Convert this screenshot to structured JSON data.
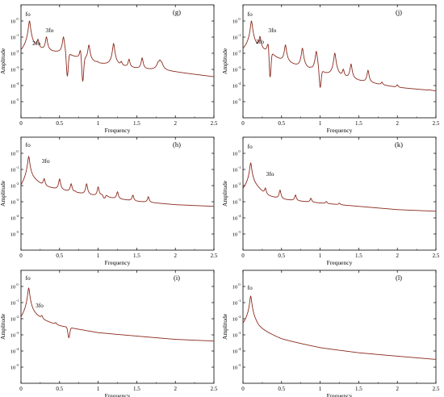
{
  "figure": {
    "panel_ids": [
      "g",
      "j",
      "h",
      "k",
      "i",
      "l"
    ]
  },
  "chart_data": [
    {
      "id": "g",
      "type": "line",
      "panel_label": "(g)",
      "xlabel": "Frequency",
      "ylabel": "Amplitude",
      "xlim": [
        0,
        2.5
      ],
      "ylim_log10": [
        -6,
        1
      ],
      "y_scale": "log",
      "x_ticks": [
        "0",
        "0.5",
        "1",
        "1.5",
        "2",
        "2.5"
      ],
      "y_ticks": [
        {
          "base": "10",
          "exp": "0"
        },
        {
          "base": "10",
          "exp": "-1"
        },
        {
          "base": "10",
          "exp": "-2"
        },
        {
          "base": "10",
          "exp": "-3"
        },
        {
          "base": "10",
          "exp": "-4"
        },
        {
          "base": "10",
          "exp": "-5"
        }
      ],
      "annotations": [
        {
          "text": "fo",
          "x": 0.09,
          "log10y": 0.3
        },
        {
          "text": "3fo",
          "x": 0.37,
          "log10y": -0.7
        },
        {
          "text": "2fo",
          "x": 0.2,
          "log10y": -1.5
        }
      ],
      "series": [
        {
          "color": "#8b2a1e",
          "baseline": [
            [
              0,
              -2.2
            ],
            [
              0.1,
              -1.8
            ],
            [
              0.5,
              -2.0
            ],
            [
              1.0,
              -2.7
            ],
            [
              1.5,
              -3.0
            ],
            [
              2.0,
              -3.2
            ],
            [
              2.5,
              -3.5
            ]
          ],
          "peaks": [
            [
              0.11,
              0.0
            ],
            [
              0.22,
              -1.2
            ],
            [
              0.33,
              -1.0
            ],
            [
              0.55,
              -1.0
            ],
            [
              0.66,
              -3.0
            ],
            [
              0.77,
              -1.8
            ],
            [
              0.88,
              -1.5
            ],
            [
              0.99,
              -2.6
            ],
            [
              1.2,
              -1.4
            ],
            [
              1.3,
              -2.6
            ],
            [
              1.4,
              -2.4
            ],
            [
              1.57,
              -2.3
            ],
            [
              1.8,
              -1.8
            ]
          ],
          "dips": [
            [
              0.6,
              -3.8
            ],
            [
              0.8,
              -4.1
            ],
            [
              1.8,
              -3.8
            ]
          ]
        }
      ]
    },
    {
      "id": "j",
      "type": "line",
      "panel_label": "(j)",
      "xlabel": "Frequency",
      "ylabel": "Amplitude",
      "xlim": [
        0,
        2.5
      ],
      "ylim_log10": [
        -6,
        1
      ],
      "y_scale": "log",
      "x_ticks": [
        "0",
        "0.5",
        "1",
        "1.5",
        "2",
        "2.5"
      ],
      "y_ticks": [
        {
          "base": "10",
          "exp": "0"
        },
        {
          "base": "10",
          "exp": "-1"
        },
        {
          "base": "10",
          "exp": "-2"
        },
        {
          "base": "10",
          "exp": "-3"
        },
        {
          "base": "10",
          "exp": "-4"
        },
        {
          "base": "10",
          "exp": "-5"
        }
      ],
      "annotations": [
        {
          "text": "fo",
          "x": 0.09,
          "log10y": 0.3
        },
        {
          "text": "3fo",
          "x": 0.38,
          "log10y": -0.7
        },
        {
          "text": "2fo",
          "x": 0.22,
          "log10y": -1.4
        }
      ],
      "series": [
        {
          "color": "#8b2a1e",
          "baseline": [
            [
              0,
              -2.0
            ],
            [
              0.1,
              -1.6
            ],
            [
              0.35,
              -2.2
            ],
            [
              0.5,
              -2.6
            ],
            [
              1.0,
              -3.5
            ],
            [
              1.5,
              -4.0
            ],
            [
              2.0,
              -4.5
            ],
            [
              2.5,
              -4.7
            ]
          ],
          "peaks": [
            [
              0.11,
              0.0
            ],
            [
              0.22,
              -1.0
            ],
            [
              0.33,
              -1.2
            ],
            [
              0.55,
              -1.5
            ],
            [
              0.77,
              -1.7
            ],
            [
              0.88,
              -3.2
            ],
            [
              0.95,
              -1.9
            ],
            [
              1.19,
              -2.0
            ],
            [
              1.3,
              -3.1
            ],
            [
              1.4,
              -2.7
            ],
            [
              1.62,
              -3.1
            ],
            [
              1.8,
              -4.0
            ],
            [
              2.0,
              -4.2
            ],
            [
              2.42,
              -4.6
            ]
          ],
          "dips": [
            [
              0.35,
              -4.2
            ],
            [
              1.0,
              -4.8
            ]
          ]
        }
      ]
    },
    {
      "id": "h",
      "type": "line",
      "panel_label": "(h)",
      "xlabel": "Frequency",
      "ylabel": "Amplitude",
      "xlim": [
        0,
        2.5
      ],
      "ylim_log10": [
        -6,
        1
      ],
      "y_scale": "log",
      "x_ticks": [
        "0",
        "0.5",
        "1",
        "1.5",
        "2",
        "2.5"
      ],
      "y_ticks": [
        {
          "base": "10",
          "exp": "0"
        },
        {
          "base": "10",
          "exp": "-1"
        },
        {
          "base": "10",
          "exp": "-2"
        },
        {
          "base": "10",
          "exp": "-3"
        },
        {
          "base": "10",
          "exp": "-4"
        },
        {
          "base": "10",
          "exp": "-5"
        }
      ],
      "annotations": [
        {
          "text": "fo",
          "x": 0.09,
          "log10y": 0.4
        },
        {
          "text": "3fo",
          "x": 0.32,
          "log10y": -0.6
        }
      ],
      "series": [
        {
          "color": "#8b2a1e",
          "baseline": [
            [
              0,
              -2.4
            ],
            [
              0.1,
              -1.5
            ],
            [
              0.3,
              -2.1
            ],
            [
              0.5,
              -2.3
            ],
            [
              1.0,
              -2.7
            ],
            [
              1.5,
              -3.0
            ],
            [
              2.0,
              -3.2
            ],
            [
              2.5,
              -3.3
            ]
          ],
          "peaks": [
            [
              0.1,
              -0.2
            ],
            [
              0.3,
              -1.6
            ],
            [
              0.5,
              -1.6
            ],
            [
              0.65,
              -1.9
            ],
            [
              0.7,
              -2.4
            ],
            [
              0.85,
              -1.9
            ],
            [
              1.0,
              -2.1
            ],
            [
              1.08,
              -2.1
            ],
            [
              1.25,
              -2.4
            ],
            [
              1.45,
              -2.6
            ],
            [
              1.65,
              -2.7
            ]
          ],
          "dips": [
            [
              1.08,
              -3.5
            ]
          ]
        }
      ]
    },
    {
      "id": "k",
      "type": "line",
      "panel_label": "(k)",
      "xlabel": "Frequency",
      "ylabel": "Amplitude",
      "xlim": [
        0,
        2.5
      ],
      "ylim_log10": [
        -6,
        1
      ],
      "y_scale": "log",
      "x_ticks": [
        "0",
        "0.5",
        "1",
        "1.5",
        "2",
        "2.5"
      ],
      "y_ticks": [
        {
          "base": "10",
          "exp": "0"
        },
        {
          "base": "10",
          "exp": "-1"
        },
        {
          "base": "10",
          "exp": "-2"
        },
        {
          "base": "10",
          "exp": "-3"
        },
        {
          "base": "10",
          "exp": "-4"
        },
        {
          "base": "10",
          "exp": "-5"
        }
      ],
      "annotations": [
        {
          "text": "fo",
          "x": 0.09,
          "log10y": 0.3
        },
        {
          "text": "3fo",
          "x": 0.35,
          "log10y": -1.4
        }
      ],
      "series": [
        {
          "color": "#8b2a1e",
          "baseline": [
            [
              0,
              -2.4
            ],
            [
              0.1,
              -1.8
            ],
            [
              0.3,
              -2.7
            ],
            [
              0.5,
              -2.9
            ],
            [
              1.0,
              -3.1
            ],
            [
              1.5,
              -3.3
            ],
            [
              2.0,
              -3.5
            ],
            [
              2.5,
              -3.6
            ]
          ],
          "peaks": [
            [
              0.1,
              -0.6
            ],
            [
              0.29,
              -2.2
            ],
            [
              0.48,
              -2.3
            ],
            [
              0.68,
              -2.6
            ],
            [
              0.88,
              -2.8
            ],
            [
              1.08,
              -3.0
            ],
            [
              1.25,
              -3.1
            ]
          ],
          "dips": []
        }
      ]
    },
    {
      "id": "i",
      "type": "line",
      "panel_label": "(i)",
      "xlabel": "Frequency",
      "ylabel": "Amplitude",
      "xlim": [
        0,
        2.5
      ],
      "ylim_log10": [
        -6,
        1
      ],
      "y_scale": "log",
      "x_ticks": [
        "0",
        "0.5",
        "1",
        "1.5",
        "2",
        "2.5"
      ],
      "y_ticks": [
        {
          "base": "10",
          "exp": "0"
        },
        {
          "base": "10",
          "exp": "-1"
        },
        {
          "base": "10",
          "exp": "-2"
        },
        {
          "base": "10",
          "exp": "-3"
        },
        {
          "base": "10",
          "exp": "-4"
        },
        {
          "base": "10",
          "exp": "-5"
        }
      ],
      "annotations": [
        {
          "text": "fo",
          "x": 0.09,
          "log10y": 0.4
        },
        {
          "text": "3fo",
          "x": 0.24,
          "log10y": -1.3
        }
      ],
      "series": [
        {
          "color": "#8b2a1e",
          "baseline": [
            [
              0,
              -2.4
            ],
            [
              0.1,
              -1.7
            ],
            [
              0.3,
              -2.2
            ],
            [
              0.5,
              -2.5
            ],
            [
              1.0,
              -2.9
            ],
            [
              1.5,
              -3.1
            ],
            [
              2.0,
              -3.3
            ],
            [
              2.5,
              -3.4
            ]
          ],
          "peaks": [
            [
              0.1,
              -0.1
            ],
            [
              0.27,
              -1.9
            ],
            [
              0.45,
              -2.3
            ],
            [
              0.62,
              -2.6
            ]
          ],
          "dips": [
            [
              0.62,
              -3.3
            ]
          ]
        }
      ]
    },
    {
      "id": "l",
      "type": "line",
      "panel_label": "(l)",
      "xlabel": "Frequency",
      "ylabel": "Amplitude",
      "xlim": [
        0,
        2.5
      ],
      "ylim_log10": [
        -6,
        1
      ],
      "y_scale": "log",
      "x_ticks": [
        "0",
        "0.5",
        "1",
        "1.5",
        "2",
        "2.5"
      ],
      "y_ticks": [
        {
          "base": "10",
          "exp": "0"
        },
        {
          "base": "10",
          "exp": "-1"
        },
        {
          "base": "10",
          "exp": "-2"
        },
        {
          "base": "10",
          "exp": "-3"
        },
        {
          "base": "10",
          "exp": "-4"
        },
        {
          "base": "10",
          "exp": "-5"
        }
      ],
      "annotations": [
        {
          "text": "fo",
          "x": 0.09,
          "log10y": -0.2
        }
      ],
      "series": [
        {
          "color": "#8b2a1e",
          "baseline": [
            [
              0,
              -2.6
            ],
            [
              0.1,
              -2.0
            ],
            [
              0.2,
              -2.8
            ],
            [
              0.5,
              -3.4
            ],
            [
              1.0,
              -3.9
            ],
            [
              1.5,
              -4.2
            ],
            [
              2.0,
              -4.4
            ],
            [
              2.5,
              -4.6
            ]
          ],
          "peaks": [
            [
              0.1,
              -0.6
            ],
            [
              0.22,
              -2.9
            ]
          ],
          "dips": []
        }
      ]
    }
  ]
}
